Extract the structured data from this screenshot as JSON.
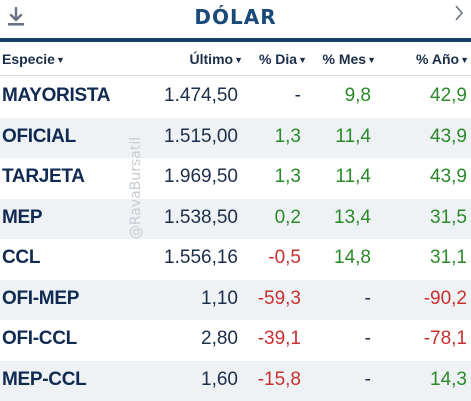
{
  "header": {
    "title": "DÓLAR"
  },
  "watermark": "@RavaBursatil",
  "columns": {
    "especie": "Especie",
    "ultimo": "Último",
    "dia": "% Dia",
    "mes": "% Mes",
    "ano": "% Año"
  },
  "rows": [
    {
      "name": "MAYORISTA",
      "ultimo": "1.474,50",
      "dia": "-",
      "mes": "9,8",
      "ano": "42,9"
    },
    {
      "name": "OFICIAL",
      "ultimo": "1.515,00",
      "dia": "1,3",
      "mes": "11,4",
      "ano": "43,9"
    },
    {
      "name": "TARJETA",
      "ultimo": "1.969,50",
      "dia": "1,3",
      "mes": "11,4",
      "ano": "43,9"
    },
    {
      "name": "MEP",
      "ultimo": "1.538,50",
      "dia": "0,2",
      "mes": "13,4",
      "ano": "31,5"
    },
    {
      "name": "CCL",
      "ultimo": "1.556,16",
      "dia": "-0,5",
      "mes": "14,8",
      "ano": "31,1"
    },
    {
      "name": "OFI-MEP",
      "ultimo": "1,10",
      "dia": "-59,3",
      "mes": "-",
      "ano": "-90,2"
    },
    {
      "name": "OFI-CCL",
      "ultimo": "2,80",
      "dia": "-39,1",
      "mes": "-",
      "ano": "-78,1"
    },
    {
      "name": "MEP-CCL",
      "ultimo": "1,60",
      "dia": "-15,8",
      "mes": "-",
      "ano": "14,3"
    }
  ],
  "colors": {
    "positive": "#2a8a2a",
    "negative": "#c8302f",
    "neutral": "#1b2e4a",
    "accent": "#1a3f68"
  },
  "icons": {
    "left": "download-icon",
    "right": "chevron-right-icon",
    "sort": "sort-down-arrow"
  }
}
